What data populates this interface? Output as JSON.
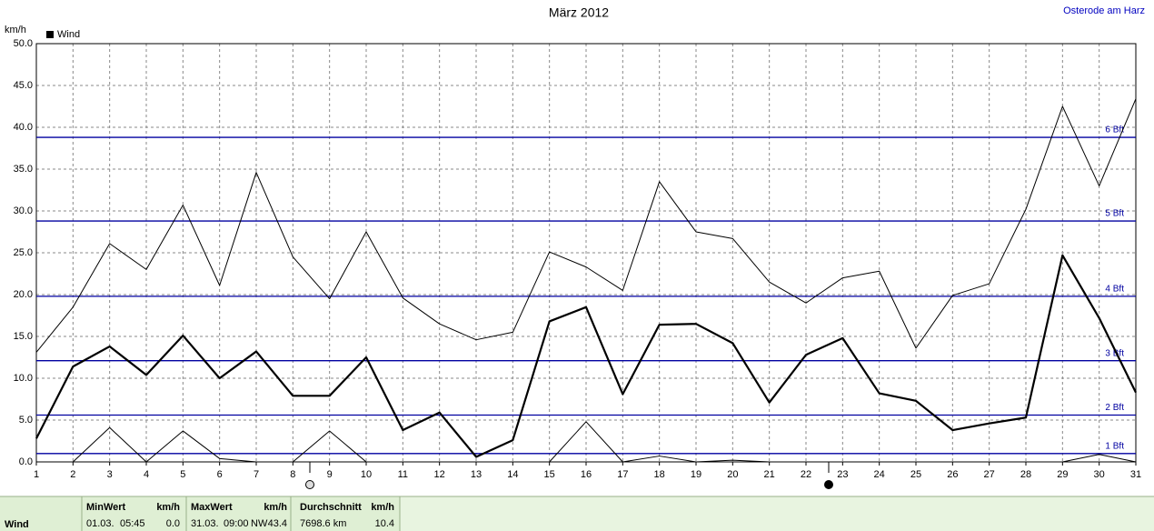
{
  "chart_data": {
    "type": "line",
    "title": "März 2012",
    "location": "Osterode am Harz",
    "y_label": "km/h",
    "categories": [
      "1",
      "2",
      "3",
      "4",
      "5",
      "6",
      "7",
      "8",
      "9",
      "10",
      "11",
      "12",
      "13",
      "14",
      "15",
      "16",
      "17",
      "18",
      "19",
      "20",
      "21",
      "22",
      "23",
      "24",
      "25",
      "26",
      "27",
      "28",
      "29",
      "30",
      "31"
    ],
    "series": [
      {
        "name": "Wind",
        "color": "#000000",
        "width": 2.2,
        "values": [
          2.8,
          11.4,
          13.8,
          10.4,
          15.1,
          10.0,
          13.2,
          7.9,
          7.9,
          12.5,
          3.8,
          5.9,
          0.6,
          2.6,
          16.8,
          18.5,
          8.1,
          16.4,
          16.5,
          14.2,
          7.1,
          12.8,
          14.8,
          8.2,
          7.3,
          3.8,
          4.6,
          5.3,
          24.7,
          17.2,
          8.3
        ]
      },
      {
        "color": "#000000",
        "width": 1,
        "values": [
          13.1,
          18.5,
          26.1,
          23.0,
          30.7,
          21.1,
          34.6,
          24.5,
          19.5,
          27.5,
          19.6,
          16.5,
          14.6,
          15.5,
          25.1,
          23.3,
          20.5,
          33.5,
          27.5,
          26.7,
          21.5,
          19.0,
          22.0,
          22.8,
          13.6,
          19.9,
          21.3,
          30.2,
          42.5,
          33.0,
          43.4
        ]
      },
      {
        "color": "#000000",
        "width": 1,
        "values": [
          0.0,
          0.0,
          4.1,
          0.0,
          3.7,
          0.4,
          0.0,
          0.0,
          3.7,
          0.0,
          0.0,
          0.0,
          0.0,
          0.0,
          0.0,
          4.8,
          0.0,
          0.7,
          0.0,
          0.2,
          0.0,
          0.0,
          0.0,
          0.0,
          0.0,
          0.0,
          0.0,
          0.0,
          0.0,
          0.9,
          0.0
        ]
      }
    ],
    "ylim": [
      0,
      50
    ],
    "yticks": [
      {
        "value": 0,
        "label": "0.0"
      },
      {
        "value": 5,
        "label": "5.0"
      },
      {
        "value": 10,
        "label": "10.0"
      },
      {
        "value": 15,
        "label": "15.0"
      },
      {
        "value": 20,
        "label": "20.0"
      },
      {
        "value": 25,
        "label": "25.0"
      },
      {
        "value": 30,
        "label": "30.0"
      },
      {
        "value": 35,
        "label": "35.0"
      },
      {
        "value": 40,
        "label": "40.0"
      },
      {
        "value": 45,
        "label": "45.0"
      },
      {
        "value": 50,
        "label": "50.0"
      }
    ],
    "grid": true,
    "reference_color": "#0000a0",
    "reference_lines": [
      {
        "value": 1.0,
        "label": "1 Bft"
      },
      {
        "value": 5.6,
        "label": "2 Bft"
      },
      {
        "value": 12.1,
        "label": "3 Bft"
      },
      {
        "value": 19.8,
        "label": "4 Bft"
      },
      {
        "value": 28.8,
        "label": "5 Bft"
      },
      {
        "value": 38.8,
        "label": "6 Bft"
      }
    ]
  },
  "summary": {
    "row_label": "Wind",
    "min": {
      "header": "MinWert",
      "unit": "km/h",
      "date": "01.03.",
      "time": "05:45",
      "value": "0.0"
    },
    "max": {
      "header": "MaxWert",
      "unit": "km/h",
      "date": "31.03.",
      "time": "09:00",
      "direction": "NW",
      "value": "43.4"
    },
    "avg": {
      "header": "Durchschnitt",
      "unit": "km/h",
      "distance": "7698.6 km",
      "value": "10.4"
    }
  }
}
